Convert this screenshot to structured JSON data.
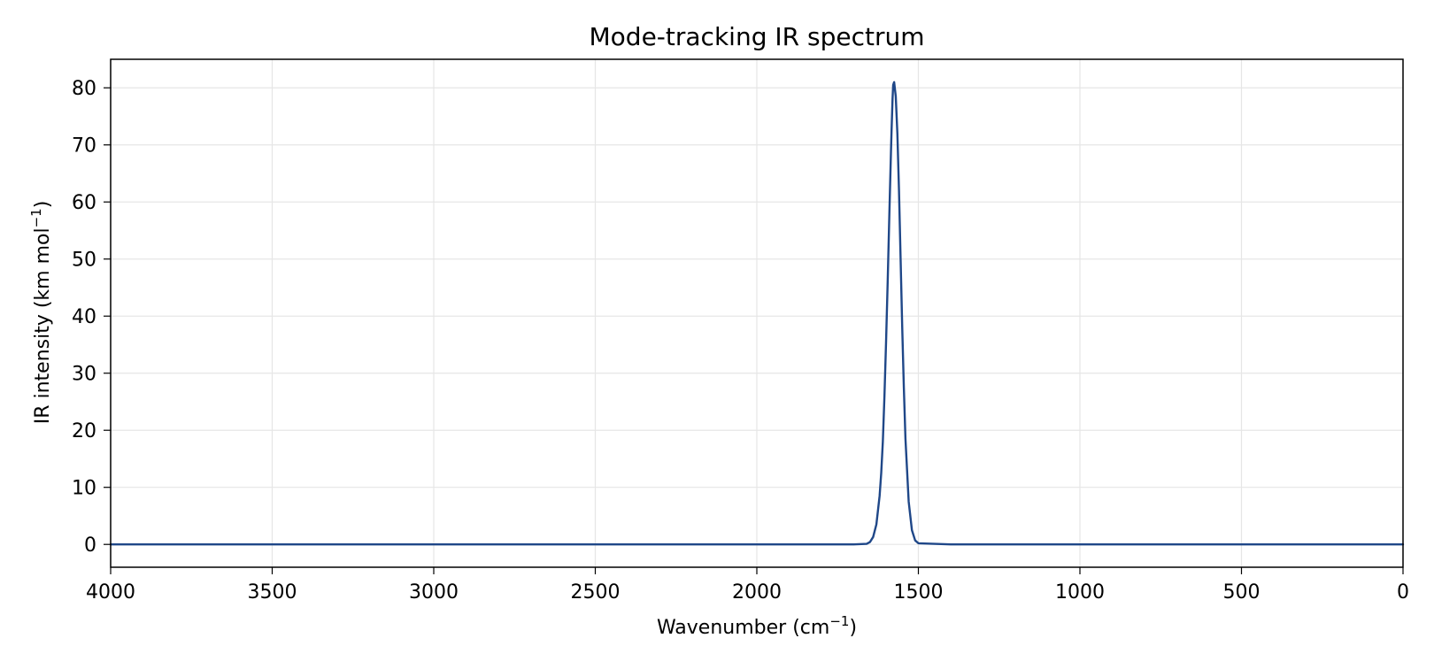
{
  "chart_data": {
    "type": "line",
    "title": "Mode-tracking IR spectrum",
    "xlabel": "Wavenumber (cm",
    "xlabel_sup": "−1",
    "xlabel_suffix": ")",
    "ylabel": "IR intensity (km mol",
    "ylabel_sup": "−1",
    "ylabel_suffix": ")",
    "xlim": [
      4000,
      0
    ],
    "ylim": [
      -4,
      85
    ],
    "x_ticks": [
      4000,
      3500,
      3000,
      2500,
      2000,
      1500,
      1000,
      500,
      0
    ],
    "y_ticks": [
      0,
      10,
      20,
      30,
      40,
      50,
      60,
      70,
      80
    ],
    "x_reversed": true,
    "grid": true,
    "series": [
      {
        "color": "#1f4788",
        "x": [
          4000,
          3000,
          2000,
          1700,
          1660,
          1650,
          1640,
          1630,
          1620,
          1615,
          1610,
          1605,
          1600,
          1595,
          1590,
          1585,
          1583,
          1580,
          1578,
          1575,
          1570,
          1565,
          1560,
          1555,
          1550,
          1545,
          1540,
          1530,
          1520,
          1510,
          1500,
          1400,
          1000,
          500,
          0
        ],
        "y": [
          0,
          0,
          0,
          0,
          0.1,
          0.4,
          1.3,
          3.5,
          8.5,
          12.5,
          18.0,
          26.0,
          35.5,
          46.0,
          57.5,
          68.5,
          72.5,
          78.0,
          80.5,
          81.0,
          78.5,
          72.0,
          62.0,
          50.0,
          38.0,
          27.5,
          18.5,
          7.5,
          2.5,
          0.7,
          0.2,
          0,
          0,
          0,
          0
        ]
      }
    ]
  }
}
